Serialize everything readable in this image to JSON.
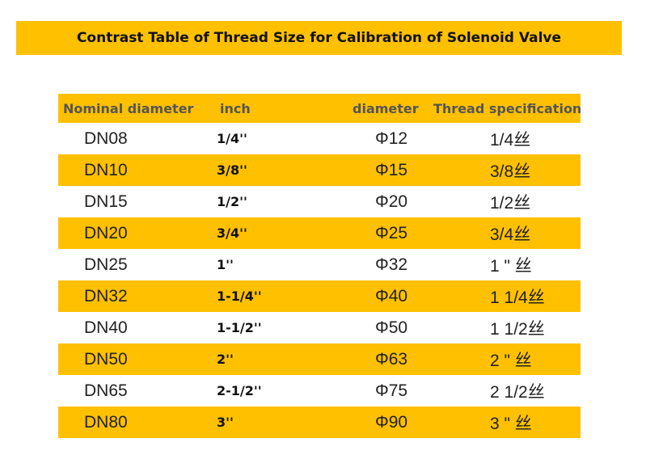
{
  "title": "Contrast Table of Thread Size for Calibration of Solenoid Valve",
  "headers": {
    "nominal": "Nominal diameter",
    "inch": "inch",
    "diameter": "diameter",
    "thread": "Thread specification"
  },
  "rows": [
    {
      "dn": "DN08",
      "inch": "1/4''",
      "diameter": "Φ12",
      "thread": "1/4丝"
    },
    {
      "dn": "DN10",
      "inch": "3/8''",
      "diameter": "Φ15",
      "thread": "3/8丝"
    },
    {
      "dn": "DN15",
      "inch": "1/2''",
      "diameter": "Φ20",
      "thread": "1/2丝"
    },
    {
      "dn": "DN20",
      "inch": "3/4''",
      "diameter": "Φ25",
      "thread": "3/4丝"
    },
    {
      "dn": "DN25",
      "inch": "1''",
      "diameter": "Φ32",
      "thread": "1 \" 丝"
    },
    {
      "dn": "DN32",
      "inch": "1-1/4''",
      "diameter": "Φ40",
      "thread": "1 1/4丝"
    },
    {
      "dn": "DN40",
      "inch": "1-1/2''",
      "diameter": "Φ50",
      "thread": "1 1/2丝"
    },
    {
      "dn": "DN50",
      "inch": "2''",
      "diameter": "Φ63",
      "thread": "2 \" 丝"
    },
    {
      "dn": "DN65",
      "inch": "2-1/2''",
      "diameter": "Φ75",
      "thread": "2 1/2丝"
    },
    {
      "dn": "DN80",
      "inch": "3''",
      "diameter": "Φ90",
      "thread": "3 \" 丝"
    }
  ],
  "colors": {
    "accent": "#FFC000",
    "header_text": "#555555"
  }
}
